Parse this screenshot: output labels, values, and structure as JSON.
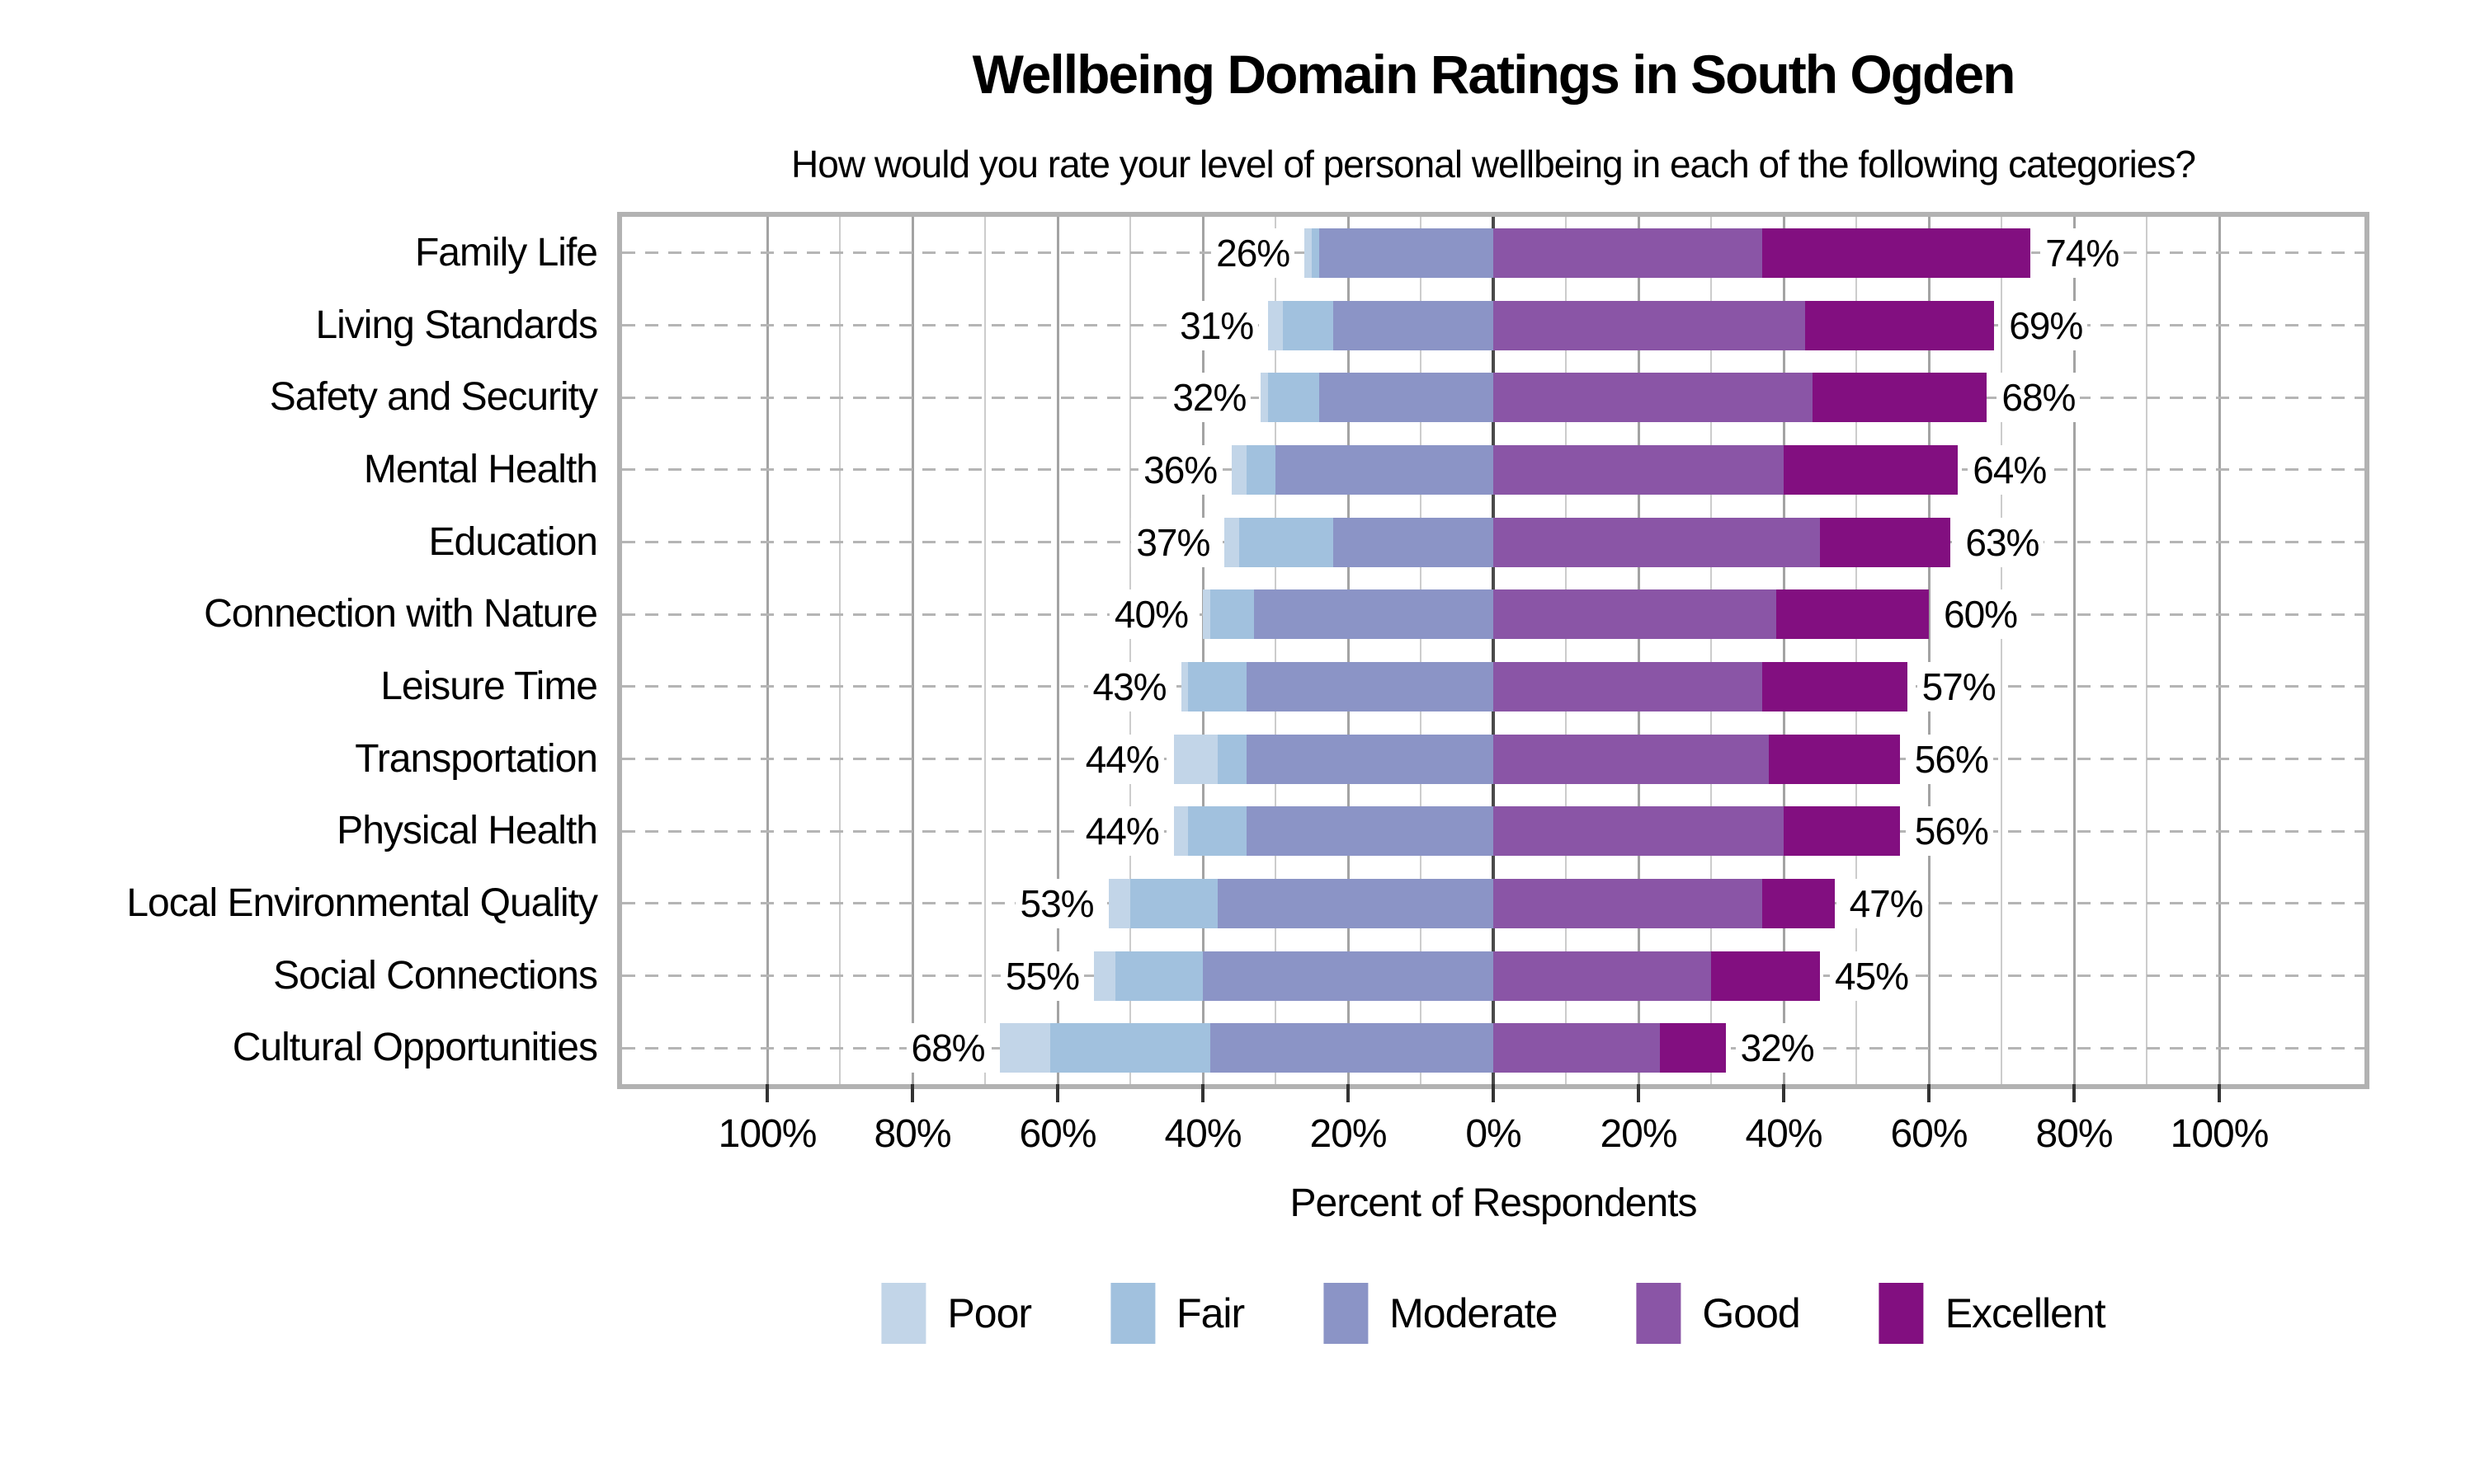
{
  "title": "Wellbeing Domain Ratings in South Ogden",
  "subtitle": "How would you rate your level of personal wellbeing in each of the following categories?",
  "axis": {
    "xlabel": "Percent of Respondents",
    "tick_values": [
      -100,
      -80,
      -60,
      -40,
      -20,
      0,
      20,
      40,
      60,
      80,
      100
    ],
    "tick_labels": [
      "100%",
      "80%",
      "60%",
      "40%",
      "20%",
      "0%",
      "20%",
      "40%",
      "60%",
      "80%",
      "100%"
    ]
  },
  "legend": [
    {
      "label": "Poor",
      "color": "#c2d5e8"
    },
    {
      "label": "Fair",
      "color": "#a1c1de"
    },
    {
      "label": "Moderate",
      "color": "#8b94c6"
    },
    {
      "label": "Good",
      "color": "#8a55a6"
    },
    {
      "label": "Excellent",
      "color": "#820f80"
    }
  ],
  "chart_data": {
    "type": "diverging_stacked_bar",
    "note": "Poor+Fair+Moderate plotted left of zero; Good+Excellent right of zero; values are percent of respondents",
    "categories": [
      "Family Life",
      "Living Standards",
      "Safety and Security",
      "Mental Health",
      "Education",
      "Connection with Nature",
      "Leisure Time",
      "Transportation",
      "Physical Health",
      "Local Environmental Quality",
      "Social Connections",
      "Cultural Opportunities"
    ],
    "series": [
      {
        "name": "Poor",
        "values": [
          1,
          2,
          1,
          2,
          2,
          1,
          1,
          6,
          2,
          3,
          3,
          7
        ]
      },
      {
        "name": "Fair",
        "values": [
          1,
          7,
          7,
          4,
          13,
          6,
          8,
          4,
          8,
          12,
          12,
          22
        ]
      },
      {
        "name": "Moderate",
        "values": [
          24,
          22,
          24,
          30,
          22,
          33,
          34,
          34,
          34,
          38,
          40,
          39
        ]
      },
      {
        "name": "Good",
        "values": [
          37,
          43,
          44,
          40,
          45,
          39,
          37,
          38,
          40,
          37,
          30,
          23
        ]
      },
      {
        "name": "Excellent",
        "values": [
          37,
          26,
          24,
          24,
          18,
          21,
          20,
          18,
          16,
          10,
          15,
          9
        ]
      }
    ],
    "left_totals": [
      26,
      31,
      32,
      36,
      37,
      40,
      43,
      44,
      44,
      53,
      55,
      68
    ],
    "right_totals": [
      74,
      69,
      68,
      64,
      63,
      60,
      57,
      56,
      56,
      47,
      45,
      32
    ],
    "left_labels": [
      "26%",
      "31%",
      "32%",
      "36%",
      "37%",
      "40%",
      "43%",
      "44%",
      "44%",
      "53%",
      "55%",
      "68%"
    ],
    "right_labels": [
      "74%",
      "69%",
      "68%",
      "64%",
      "63%",
      "60%",
      "57%",
      "56%",
      "56%",
      "47%",
      "45%",
      "32%"
    ],
    "xlim": [
      -120,
      120
    ],
    "grid": {
      "vertical_step": 10,
      "major_step": 20,
      "horizontal": "dashed-per-row"
    },
    "legend_position": "bottom"
  }
}
